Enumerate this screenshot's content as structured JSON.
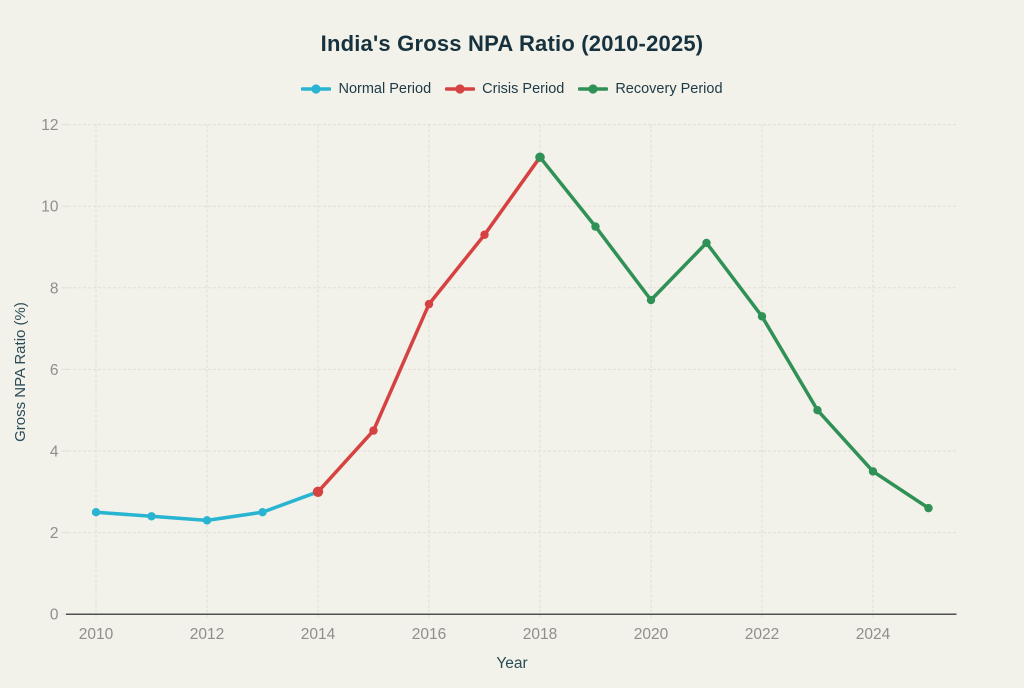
{
  "chart_data": {
    "type": "line",
    "title": "India's Gross NPA Ratio (2010-2025)",
    "xlabel": "Year",
    "ylabel": "Gross NPA Ratio (%)",
    "ylim": [
      0,
      12
    ],
    "yticks": [
      0,
      2,
      4,
      6,
      8,
      10,
      12
    ],
    "xticks": [
      2010,
      2012,
      2014,
      2016,
      2018,
      2020,
      2022,
      2024
    ],
    "xrange": [
      2010,
      2025
    ],
    "grid": true,
    "legend_position": "top",
    "series": [
      {
        "name": "Normal Period",
        "color": "#29b4d2",
        "x": [
          2010,
          2011,
          2012,
          2013,
          2014
        ],
        "values": [
          2.5,
          2.4,
          2.3,
          2.5,
          3.0
        ]
      },
      {
        "name": "Crisis Period",
        "color": "#d64242",
        "x": [
          2014,
          2015,
          2016,
          2017,
          2018
        ],
        "values": [
          3.0,
          4.5,
          7.6,
          9.3,
          11.2
        ]
      },
      {
        "name": "Recovery Period",
        "color": "#2f9156",
        "x": [
          2018,
          2019,
          2020,
          2021,
          2022,
          2023,
          2024,
          2025
        ],
        "values": [
          11.2,
          9.5,
          7.7,
          9.1,
          7.3,
          5.0,
          3.5,
          2.6
        ]
      }
    ]
  },
  "legend": {
    "items": [
      {
        "label": "Normal Period",
        "color": "#29b4d2"
      },
      {
        "label": "Crisis Period",
        "color": "#d64242"
      },
      {
        "label": "Recovery Period",
        "color": "#2f9156"
      }
    ]
  },
  "colors": {
    "background": "#f2f1ea",
    "title_text": "#16323e",
    "legend_text": "#1d3a45",
    "axis_title_text": "#2a4c57",
    "tick_text": "#8e8e8c",
    "gridline": "#e0dfd5",
    "axis_line": "#4d5152",
    "normal_period": "#29b4d2",
    "crisis_period": "#d64242",
    "recovery_period": "#2f9156"
  }
}
